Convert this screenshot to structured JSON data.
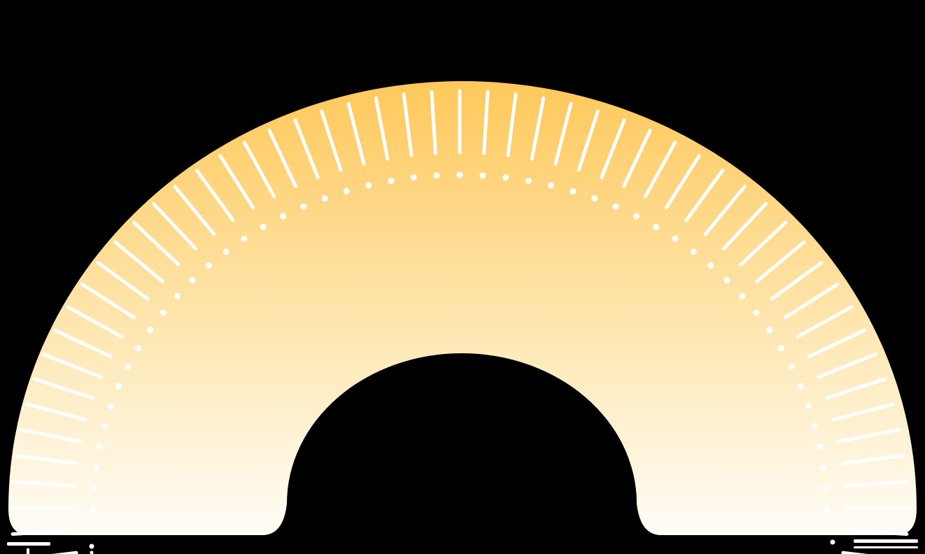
{
  "gauge": {
    "major_tick_count": 55,
    "minor_dot_count": 51,
    "colors": {
      "background": "#000000",
      "arc_top": "#FFC85A",
      "arc_mid": "#FEE7B2",
      "arc_bottom": "#FFFDF7",
      "ticks": "#FFFFFF"
    }
  }
}
